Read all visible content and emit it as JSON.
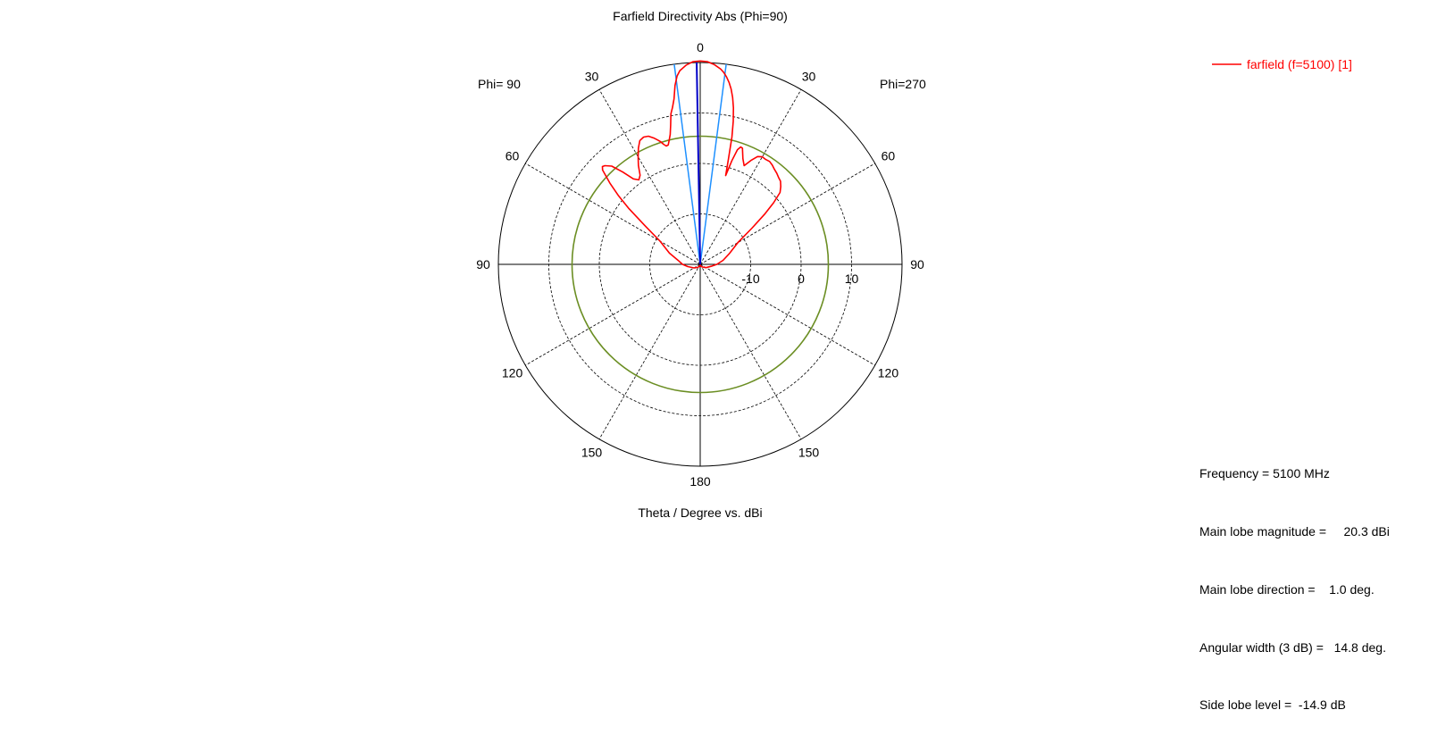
{
  "chart_data": {
    "type": "polar-line",
    "title": "Farfield Directivity Abs (Phi=90)",
    "xlabel": "Theta / Degree vs. dBi",
    "left_half_label": "Phi= 90",
    "right_half_label": "Phi=270",
    "angle_ticks": [
      "0",
      "30",
      "60",
      "90",
      "120",
      "150",
      "180"
    ],
    "radial_range_dbi": [
      -20,
      20
    ],
    "radial_ticks": [
      {
        "label": "-10",
        "value": -10
      },
      {
        "label": "0",
        "value": 0
      },
      {
        "label": "10",
        "value": 10
      }
    ],
    "grid": true,
    "legend_position": "top-right",
    "series": [
      {
        "name": "farfield (f=5100) [1]",
        "color": "#ff0000",
        "theta_deg_phi90": [
          0,
          2,
          4,
          6,
          7,
          8,
          9,
          10,
          11,
          12,
          13,
          14,
          15,
          16,
          17,
          18,
          19,
          20,
          22,
          24,
          26,
          28,
          30,
          32,
          34,
          36,
          38,
          40,
          42,
          44,
          45,
          46,
          48,
          50,
          52,
          55,
          60,
          70,
          80,
          90,
          100,
          120,
          140,
          160,
          180
        ],
        "directivity_phi90": [
          20.3,
          20.2,
          19.6,
          18.6,
          17.6,
          15.8,
          13.2,
          11.6,
          10.4,
          8.2,
          6.4,
          5.4,
          4.5,
          4.4,
          4.9,
          5.6,
          6.1,
          6.6,
          7.4,
          7.6,
          7.3,
          6.1,
          4.6,
          3.1,
          1.3,
          0.7,
          1.5,
          3.9,
          6.2,
          7.2,
          7.4,
          6.9,
          4.1,
          1.1,
          -2.1,
          -6.6,
          -10.8,
          -13.5,
          -15.6,
          -16.5,
          -17.5,
          -18.6,
          -19.2,
          -19.6,
          -19.9
        ],
        "theta_deg_phi270": [
          0,
          2,
          4,
          6,
          7,
          8,
          9,
          10,
          11,
          12,
          13,
          14,
          15,
          16,
          17,
          18,
          19,
          20,
          22,
          24,
          26,
          28,
          30,
          32,
          34,
          36,
          38,
          40,
          42,
          44,
          46,
          48,
          50,
          52,
          55,
          60,
          70,
          80,
          90,
          100,
          120,
          140,
          160,
          180
        ],
        "directivity_phi270": [
          20.3,
          20.2,
          19.7,
          18.9,
          18.3,
          17.5,
          16.5,
          15.3,
          13.7,
          11.7,
          9.1,
          6.0,
          1.6,
          -1.7,
          1.5,
          3.9,
          4.6,
          4.5,
          2.6,
          1.4,
          2.9,
          4.2,
          4.6,
          4.5,
          4.6,
          4.3,
          3.9,
          3.6,
          3.2,
          2.9,
          2.2,
          1.3,
          -1.0,
          -3.7,
          -7.5,
          -11.4,
          -13.9,
          -15.4,
          -16.7,
          -17.8,
          -18.7,
          -19.3,
          -19.6,
          -19.9
        ]
      }
    ],
    "markers": {
      "main_lobe_direction_deg": 1.0,
      "beamwidth_edges_deg": [
        -7.4,
        7.4
      ],
      "side_lobe_ring_dbi": 5.4
    }
  },
  "info": {
    "frequency": "Frequency = 5100 MHz",
    "main_lobe_magnitude": "Main lobe magnitude =     20.3 dBi",
    "main_lobe_direction": "Main lobe direction =    1.0 deg.",
    "angular_width": "Angular width (3 dB) =   14.8 deg.",
    "side_lobe_level": "Side lobe level =  -14.9 dB"
  },
  "colors": {
    "series": "#ff0000",
    "main_lobe_marker": "#0000c8",
    "beamwidth_marker": "#1e90ff",
    "side_lobe_ring": "#6b8e23",
    "grid": "#000000"
  }
}
